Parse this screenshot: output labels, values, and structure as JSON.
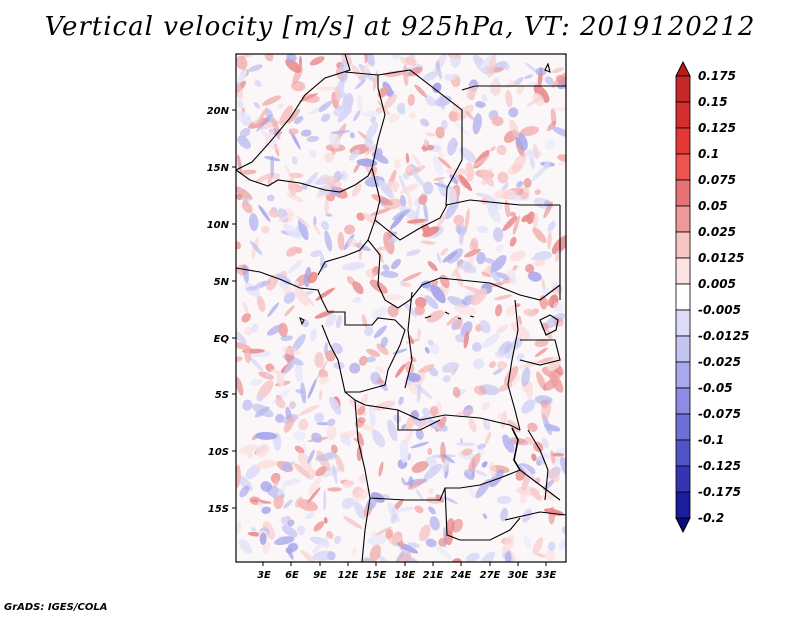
{
  "title": "Vertical velocity [m/s] at 925hPa, VT: 2019120212",
  "credit": "GrADS: IGES/COLA",
  "lat_labels": [
    "20N",
    "15N",
    "10N",
    "5N",
    "EQ",
    "5S",
    "10S",
    "15S"
  ],
  "lon_labels": [
    "3E",
    "6E",
    "9E",
    "12E",
    "15E",
    "18E",
    "21E",
    "24E",
    "27E",
    "30E",
    "33E"
  ],
  "colorbar": {
    "labels": [
      "0.175",
      "0.15",
      "0.125",
      "0.1",
      "0.075",
      "0.05",
      "0.025",
      "0.0125",
      "0.005",
      "-0.005",
      "-0.0125",
      "-0.025",
      "-0.05",
      "-0.075",
      "-0.1",
      "-0.125",
      "-0.175",
      "-0.2"
    ],
    "colors": [
      "#b71c1c",
      "#c62828",
      "#d32f2f",
      "#e53935",
      "#ef5350",
      "#e57373",
      "#ef9a9a",
      "#f8c4c4",
      "#fbe3e3",
      "#ffffff",
      "#dcdcf8",
      "#c5c5f2",
      "#a8a8ec",
      "#8c8ce4",
      "#6f6fd8",
      "#5353c8",
      "#3535b4",
      "#1c1c9c",
      "#0a0a80"
    ]
  }
}
